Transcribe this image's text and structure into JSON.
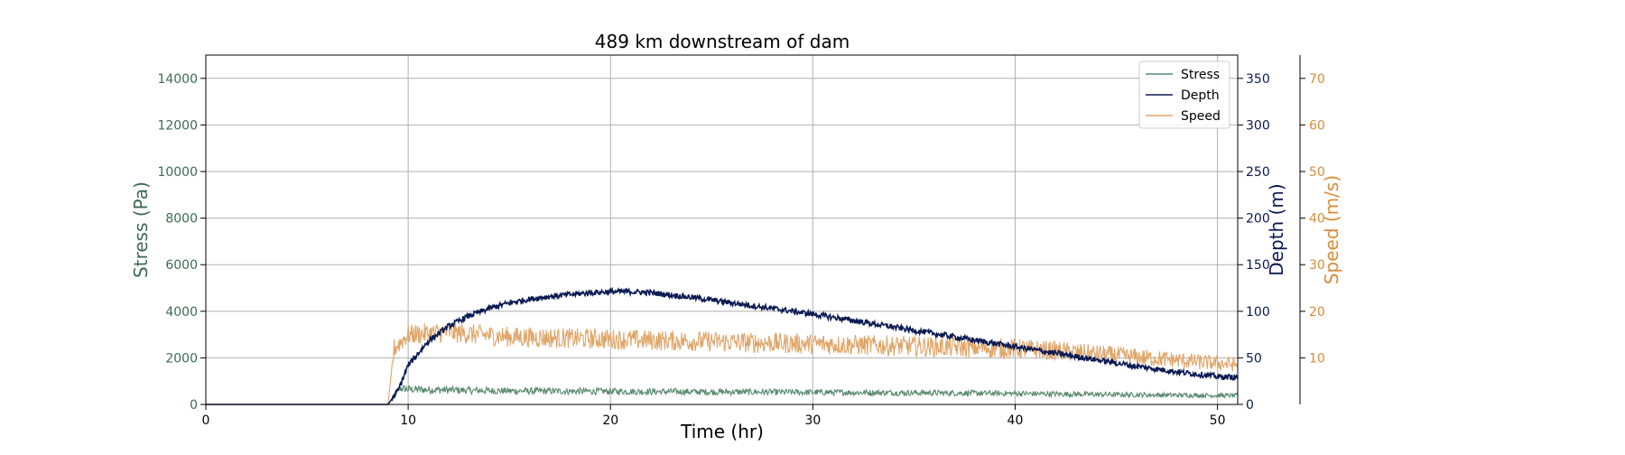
{
  "chart_data": {
    "type": "line",
    "title": "489 km downstream of dam",
    "xlabel": "Time (hr)",
    "xlim": [
      0,
      51
    ],
    "xticks": [
      0,
      10,
      20,
      30,
      40,
      50
    ],
    "grid": true,
    "legend_position": "top-right",
    "axes": {
      "stress": {
        "label": "Stress (Pa)",
        "color": "#3d6b4f",
        "ylim": [
          0,
          15000
        ],
        "ticks": [
          0,
          2000,
          4000,
          6000,
          8000,
          10000,
          12000,
          14000
        ],
        "side": "left"
      },
      "depth": {
        "label": "Depth (m)",
        "color": "#0a1a52",
        "ylim": [
          0,
          375
        ],
        "ticks": [
          0,
          50,
          100,
          150,
          200,
          250,
          300,
          350
        ],
        "side": "right"
      },
      "speed": {
        "label": "Speed (m/s)",
        "color": "#d98c3a",
        "ylim": [
          0,
          75
        ],
        "ticks": [
          10,
          20,
          30,
          40,
          50,
          60,
          70
        ],
        "side": "right-outer"
      }
    },
    "series": [
      {
        "name": "Stress",
        "axis": "stress",
        "color": "#5a8a70",
        "noise": 180,
        "x": [
          0,
          9,
          9.6,
          10,
          12,
          15,
          20,
          25,
          30,
          35,
          40,
          45,
          51
        ],
        "y": [
          0,
          0,
          700,
          650,
          620,
          580,
          560,
          540,
          520,
          500,
          470,
          420,
          380
        ]
      },
      {
        "name": "Depth",
        "axis": "depth",
        "color": "#0a1a52",
        "noise": 3,
        "x": [
          0,
          9,
          9.5,
          10,
          11,
          12,
          13,
          14,
          15,
          16,
          17,
          18,
          19,
          20,
          21,
          22,
          24,
          26,
          28,
          30,
          32,
          34,
          36,
          38,
          40,
          42,
          44,
          46,
          48,
          50,
          51
        ],
        "y": [
          0,
          0,
          15,
          42,
          68,
          84,
          95,
          103,
          109,
          113,
          116,
          118,
          120,
          121,
          121,
          120,
          115,
          109,
          103,
          97,
          90,
          83,
          76,
          69,
          62,
          55,
          48,
          41,
          35,
          30,
          29
        ]
      },
      {
        "name": "Speed",
        "axis": "speed",
        "color": "#e0a66a",
        "noise": 2.2,
        "x": [
          0,
          9,
          9.3,
          10,
          12,
          15,
          20,
          25,
          30,
          35,
          40,
          42,
          45,
          48,
          51
        ],
        "y": [
          0,
          0,
          12,
          15,
          15.5,
          14.5,
          14,
          13.5,
          13,
          12.5,
          12,
          11.5,
          10.5,
          9.5,
          8.5
        ]
      }
    ]
  }
}
